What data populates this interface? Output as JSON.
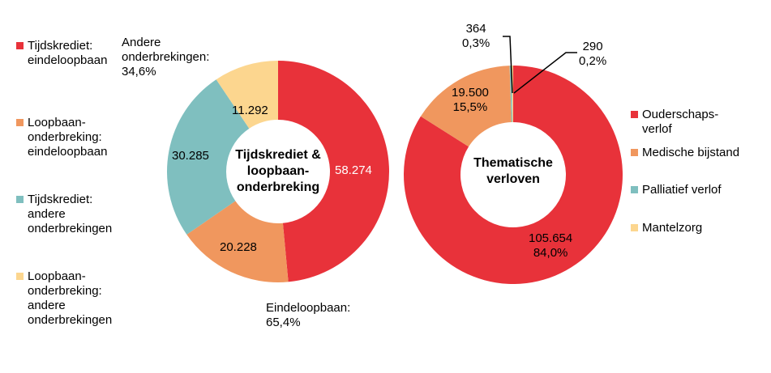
{
  "chart_data": [
    {
      "type": "pie",
      "donut": true,
      "title": "Tijdskrediet & loopbaan-onderbreking",
      "categories": [
        "Tijdskrediet: eindeloopbaan",
        "Loopbaan-onderbreking: eindeloopbaan",
        "Tijdskrediet: andere onderbrekingen",
        "Loopbaan-onderbreking: andere onderbrekingen"
      ],
      "values": [
        58274,
        20228,
        30285,
        11292
      ],
      "value_labels": [
        "58.274",
        "20.228",
        "30.285",
        "11.292"
      ],
      "colors": [
        "#E8323A",
        "#F0975E",
        "#7FBFBF",
        "#FCD68F"
      ],
      "group_labels": {
        "eindeloopbaan": [
          "Eindeloopbaan:",
          "65,4%"
        ],
        "andere": [
          "Andere",
          "onderbrekingen:",
          "34,6%"
        ]
      },
      "legend": "left"
    },
    {
      "type": "pie",
      "donut": true,
      "title": "Thematische verloven",
      "categories": [
        "Ouderschaps-verlof",
        "Medische bijstand",
        "Palliatief verlof",
        "Mantelzorg"
      ],
      "values": [
        105654,
        19500,
        364,
        290
      ],
      "value_labels": [
        "105.654",
        "19.500",
        "364",
        "290"
      ],
      "percent_labels": [
        "84,0%",
        "15,5%",
        "0,3%",
        "0,2%"
      ],
      "colors": [
        "#E8323A",
        "#F0975E",
        "#7FBFBF",
        "#FCD68F"
      ],
      "legend": "right"
    }
  ],
  "left_legend": [
    [
      "Tijdskrediet:",
      "eindeloopbaan"
    ],
    [
      "Loopbaan-",
      "onderbreking:",
      "eindeloopbaan"
    ],
    [
      "Tijdskrediet:",
      "andere",
      "onderbrekingen"
    ],
    [
      "Loopbaan-",
      "onderbreking:",
      "andere",
      "onderbrekingen"
    ]
  ],
  "left_title": [
    "Tijdskrediet &",
    "loopbaan-",
    "onderbreking"
  ],
  "right_legend": [
    [
      "Ouderschaps-",
      "verlof"
    ],
    [
      "Medische bijstand"
    ],
    [
      "Palliatief verlof"
    ],
    [
      "Mantelzorg"
    ]
  ],
  "right_title": [
    "Thematische",
    "verloven"
  ]
}
